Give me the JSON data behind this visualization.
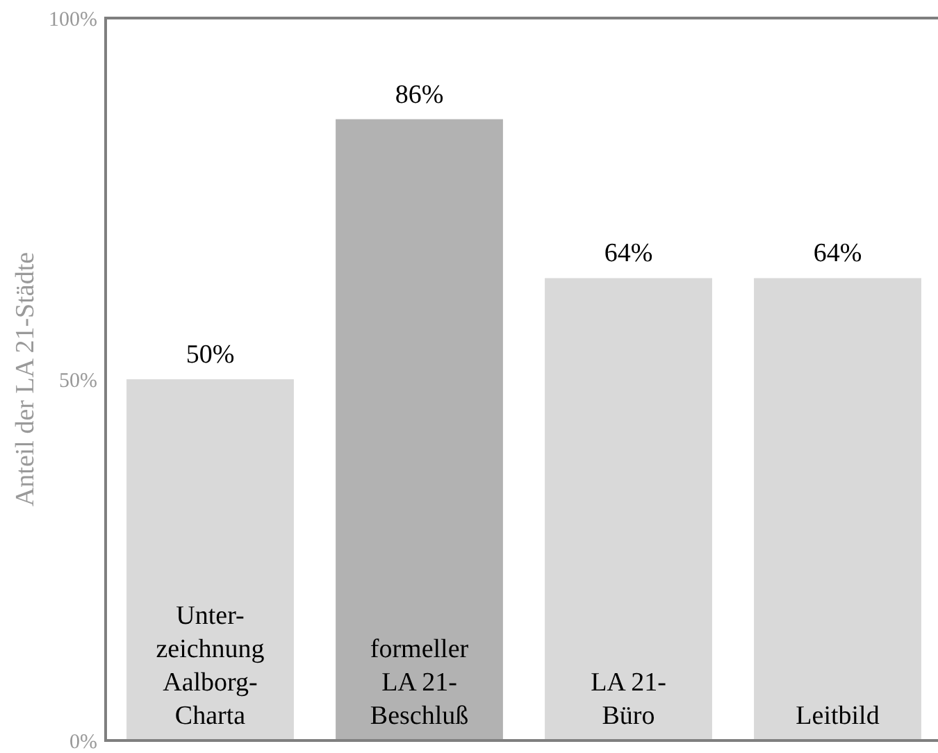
{
  "chart_data": {
    "type": "bar",
    "ylabel": "Anteil der LA 21-Städte",
    "categories": [
      "Unter-\nzeichnung\nAalborg-\nCharta",
      "formeller\nLA 21-\nBeschluß",
      "LA 21-\nBüro",
      "Leitbild"
    ],
    "values": [
      50,
      86,
      64,
      64
    ],
    "colors": [
      "#d9d9d9",
      "#b2b2b2",
      "#d9d9d9",
      "#d9d9d9"
    ],
    "value_labels": [
      "50%",
      "86%",
      "64%",
      "64%"
    ],
    "ylim": [
      0,
      100
    ],
    "yticks": [
      {
        "value": 0,
        "label": "0%"
      },
      {
        "value": 50,
        "label": "50%"
      },
      {
        "value": 100,
        "label": "100%"
      }
    ]
  }
}
